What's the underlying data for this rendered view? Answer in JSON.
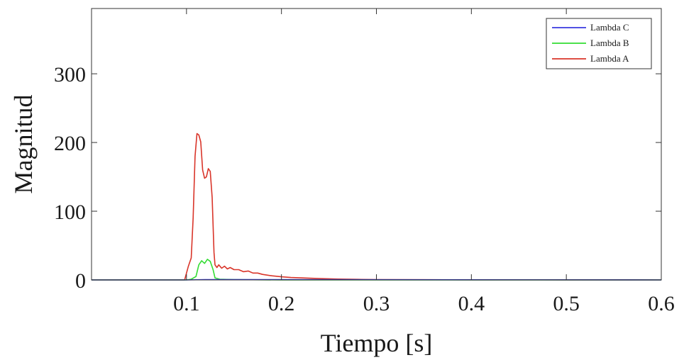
{
  "chart_data": {
    "type": "line",
    "xlabel": "Tiempo [s]",
    "ylabel": "Magnitud",
    "xlim": [
      0,
      0.6
    ],
    "ylim": [
      0,
      395
    ],
    "xticks": [
      0.1,
      0.2,
      0.3,
      0.4,
      0.5,
      0.6
    ],
    "xtick_labels": [
      "0.1",
      "0.2",
      "0.3",
      "0.4",
      "0.5",
      "0.6"
    ],
    "yticks": [
      0,
      100,
      200,
      300
    ],
    "ytick_labels": [
      "0",
      "100",
      "200",
      "300"
    ],
    "grid": false,
    "legend_position": "top-right",
    "series": [
      {
        "name": "Lambda C",
        "color": "#3a3adf",
        "x": [
          0,
          0.1,
          0.12,
          0.6
        ],
        "y": [
          0,
          0,
          0.5,
          0
        ]
      },
      {
        "name": "Lambda B",
        "color": "#33dd33",
        "x": [
          0,
          0.1,
          0.105,
          0.11,
          0.113,
          0.116,
          0.119,
          0.122,
          0.125,
          0.128,
          0.13,
          0.135,
          0.15,
          0.2,
          0.6
        ],
        "y": [
          0,
          0,
          1,
          5,
          22,
          28,
          24,
          30,
          27,
          15,
          3,
          1,
          0.5,
          0,
          0
        ]
      },
      {
        "name": "Lambda A",
        "color": "#d9352a",
        "x": [
          0,
          0.098,
          0.102,
          0.105,
          0.107,
          0.109,
          0.111,
          0.113,
          0.115,
          0.117,
          0.119,
          0.121,
          0.123,
          0.125,
          0.127,
          0.129,
          0.13,
          0.132,
          0.134,
          0.137,
          0.14,
          0.143,
          0.146,
          0.15,
          0.155,
          0.16,
          0.165,
          0.17,
          0.175,
          0.18,
          0.19,
          0.2,
          0.21,
          0.22,
          0.23,
          0.24,
          0.25,
          0.26,
          0.28,
          0.3,
          0.35,
          0.4,
          0.5,
          0.6
        ],
        "y": [
          0,
          0,
          20,
          32,
          90,
          180,
          213,
          211,
          201,
          160,
          148,
          150,
          162,
          158,
          120,
          40,
          22,
          18,
          22,
          17,
          20,
          16,
          18,
          15,
          15,
          12,
          13,
          10,
          10,
          8,
          6,
          4.5,
          3.5,
          3,
          2.5,
          2,
          1.6,
          1.2,
          0.8,
          0.5,
          0.3,
          0.2,
          0.1,
          0
        ]
      }
    ]
  }
}
